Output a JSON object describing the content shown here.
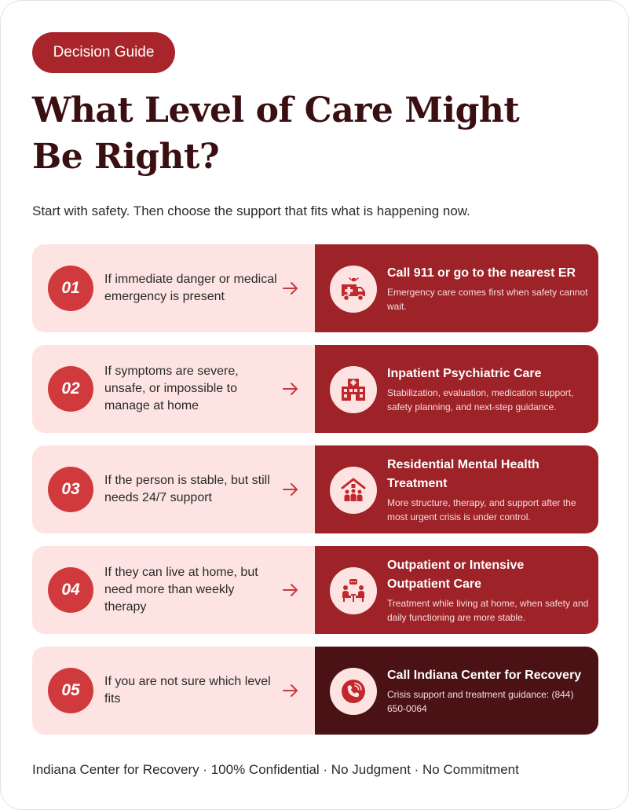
{
  "badge": "Decision Guide",
  "title_line1": "What Level of Care Might",
  "title_line2": "Be Right?",
  "subtitle": "Start with safety. Then choose the support that fits what is happening now.",
  "rows": [
    {
      "number": "01",
      "condition": "If immediate danger or medical emergency is present",
      "option_title": "Call 911 or go to the nearest ER",
      "option_desc": "Emergency care comes first when safety cannot wait.",
      "icon": "ambulance-icon"
    },
    {
      "number": "02",
      "condition": "If symptoms are severe, unsafe, or impossible to manage at home",
      "option_title": "Inpatient Psychiatric Care",
      "option_desc": "Stabilization, evaluation, medication support, safety planning, and next-step guidance.",
      "icon": "hospital-icon"
    },
    {
      "number": "03",
      "condition": "If the person is stable, but still needs 24/7 support",
      "option_title": "Residential Mental Health Treatment",
      "option_desc": "More structure, therapy, and support after the most urgent crisis is under control.",
      "icon": "residential-home-icon"
    },
    {
      "number": "04",
      "condition": "If they can live at home, but need more than weekly therapy",
      "option_title": "Outpatient or Intensive Outpatient Care",
      "option_desc": "Treatment while living at home, when safety and daily functioning are more stable.",
      "icon": "counseling-session-icon"
    },
    {
      "number": "05",
      "condition": "If you are not sure which level fits",
      "option_title": "Call Indiana Center for Recovery",
      "option_desc": "Crisis support and treatment guidance: (844) 650-0064",
      "icon": "phone-call-icon"
    }
  ],
  "footer": "Indiana Center for Recovery · 100% Confidential · No Judgment · No Commitment",
  "colors": {
    "accent": "#a8262b",
    "number_circle": "#d13a3d",
    "row_left_bg": "#fde4e2",
    "row_right_bg": "#9d2328",
    "row_right_dark_bg": "#4a1215",
    "title": "#3a0f12"
  }
}
